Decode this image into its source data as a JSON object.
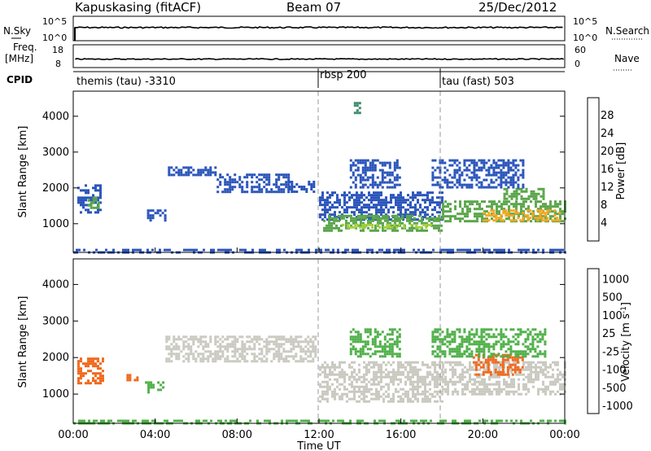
{
  "header": {
    "radar": "Kapuskasing (fitACF)",
    "beam": "Beam 07",
    "date": "25/Dec/2012"
  },
  "strip1": {
    "left_label": "N.Sky",
    "left_ticks": [
      "10^5",
      "10^0"
    ],
    "right_ticks": [
      "10^5",
      "10^0"
    ],
    "right_label": "N.Search"
  },
  "strip2": {
    "left_label_1": "Freq.",
    "left_label_2": "[MHz]",
    "left_ticks": [
      "18",
      "8"
    ],
    "right_ticks": [
      "60",
      "0"
    ],
    "right_label": "Nave"
  },
  "cpid": {
    "label": "CPID",
    "segments": [
      {
        "text": "themis (tau) -3310",
        "start_hour": 0,
        "end_hour": 12
      },
      {
        "text": "rbsp 200",
        "start_hour": 12,
        "end_hour": 18
      },
      {
        "text": "tau (fast) 503",
        "start_hour": 18,
        "end_hour": 24
      }
    ]
  },
  "xaxis": {
    "title": "Time UT",
    "ticks": [
      "00:00",
      "04:00",
      "08:00",
      "12:00",
      "16:00",
      "20:00",
      "00:00"
    ]
  },
  "colors": {
    "power": [
      "#1b2fd6",
      "#2a54ba",
      "#3f8d6e",
      "#5aa64a",
      "#a4cf3a",
      "#f7a722",
      "#f06e1e",
      "#e11f1f"
    ],
    "velocity": [
      "#2237c9",
      "#2e7f4f",
      "#4fb049",
      "#c9c9c0",
      "#c9c9c0",
      "#f39a2a",
      "#f0681c",
      "#e51e1e"
    ]
  },
  "chart_data": [
    {
      "type": "heatmap",
      "title": "Power",
      "xlabel": "Time UT",
      "ylabel": "Slant Range [km]",
      "xlim_hours": [
        0,
        24
      ],
      "ylim": [
        200,
        4700
      ],
      "yticks": [
        1000,
        2000,
        3000,
        4000
      ],
      "colorbar": {
        "label": "Power [dB]",
        "ticks": [
          "4",
          "8",
          "12",
          "16",
          "20",
          "24",
          "28"
        ],
        "range": [
          0,
          30
        ]
      },
      "regions": [
        {
          "t0": 0.2,
          "t1": 1.3,
          "r0": 1300,
          "r1": 2100,
          "v": 7
        },
        {
          "t0": 0.7,
          "t1": 1.2,
          "r0": 1450,
          "r1": 1750,
          "v": 13
        },
        {
          "t0": 3.6,
          "t1": 4.5,
          "r0": 1100,
          "r1": 1400,
          "v": 6
        },
        {
          "t0": 4.5,
          "t1": 7.0,
          "r0": 2350,
          "r1": 2600,
          "v": 5
        },
        {
          "t0": 7.0,
          "t1": 10.5,
          "r0": 1900,
          "r1": 2400,
          "v": 5
        },
        {
          "t0": 10.5,
          "t1": 11.8,
          "r0": 1900,
          "r1": 2200,
          "v": 5
        },
        {
          "t0": 12.0,
          "t1": 18.0,
          "r0": 1100,
          "r1": 1900,
          "v": 5
        },
        {
          "t0": 12.2,
          "t1": 18.0,
          "r0": 800,
          "r1": 1250,
          "v": 13
        },
        {
          "t0": 13.0,
          "t1": 17.5,
          "r0": 880,
          "r1": 1000,
          "v": 18
        },
        {
          "t0": 18.0,
          "t1": 24.0,
          "r0": 1050,
          "r1": 1650,
          "v": 12
        },
        {
          "t0": 20.0,
          "t1": 23.8,
          "r0": 1100,
          "r1": 1400,
          "v": 20
        },
        {
          "t0": 21.0,
          "t1": 23.0,
          "r0": 1700,
          "r1": 2000,
          "v": 12
        },
        {
          "t0": 13.5,
          "t1": 16.0,
          "r0": 2000,
          "r1": 2800,
          "v": 6
        },
        {
          "t0": 17.5,
          "t1": 22.0,
          "r0": 2000,
          "r1": 2800,
          "v": 5
        },
        {
          "t0": 13.7,
          "t1": 14.0,
          "r0": 4100,
          "r1": 4400,
          "v": 10
        },
        {
          "t0": 0,
          "t1": 24,
          "r0": 200,
          "r1": 300,
          "v": 4
        }
      ]
    },
    {
      "type": "heatmap",
      "title": "Velocity",
      "xlabel": "Time UT",
      "ylabel": "Slant Range [km]",
      "xlim_hours": [
        0,
        24
      ],
      "ylim": [
        200,
        4700
      ],
      "yticks": [
        1000,
        2000,
        3000,
        4000
      ],
      "colorbar": {
        "label": "Velocity [m s^-1]",
        "ticks": [
          "1000",
          "500",
          "100",
          "25",
          "-25",
          "-100",
          "-500",
          "-1000"
        ]
      },
      "regions": [
        {
          "t0": 0.2,
          "t1": 1.4,
          "r0": 1300,
          "r1": 2000,
          "v": -300
        },
        {
          "t0": 2.6,
          "t1": 3.1,
          "r0": 1350,
          "r1": 1550,
          "v": -300
        },
        {
          "t0": 3.5,
          "t1": 4.4,
          "r0": 1050,
          "r1": 1350,
          "v": 150
        },
        {
          "t0": 4.5,
          "t1": 11.8,
          "r0": 1900,
          "r1": 2600,
          "v": 0
        },
        {
          "t0": 12.0,
          "t1": 18.0,
          "r0": 800,
          "r1": 1900,
          "v": 0
        },
        {
          "t0": 18.0,
          "t1": 24.0,
          "r0": 1000,
          "r1": 1900,
          "v": 0
        },
        {
          "t0": 19.5,
          "t1": 22.0,
          "r0": 1500,
          "r1": 2100,
          "v": -300
        },
        {
          "t0": 13.5,
          "t1": 16.0,
          "r0": 2000,
          "r1": 2800,
          "v": 200
        },
        {
          "t0": 17.5,
          "t1": 23.0,
          "r0": 2000,
          "r1": 2800,
          "v": 200
        },
        {
          "t0": 0,
          "t1": 24,
          "r0": 200,
          "r1": 300,
          "v": 200
        }
      ]
    }
  ]
}
